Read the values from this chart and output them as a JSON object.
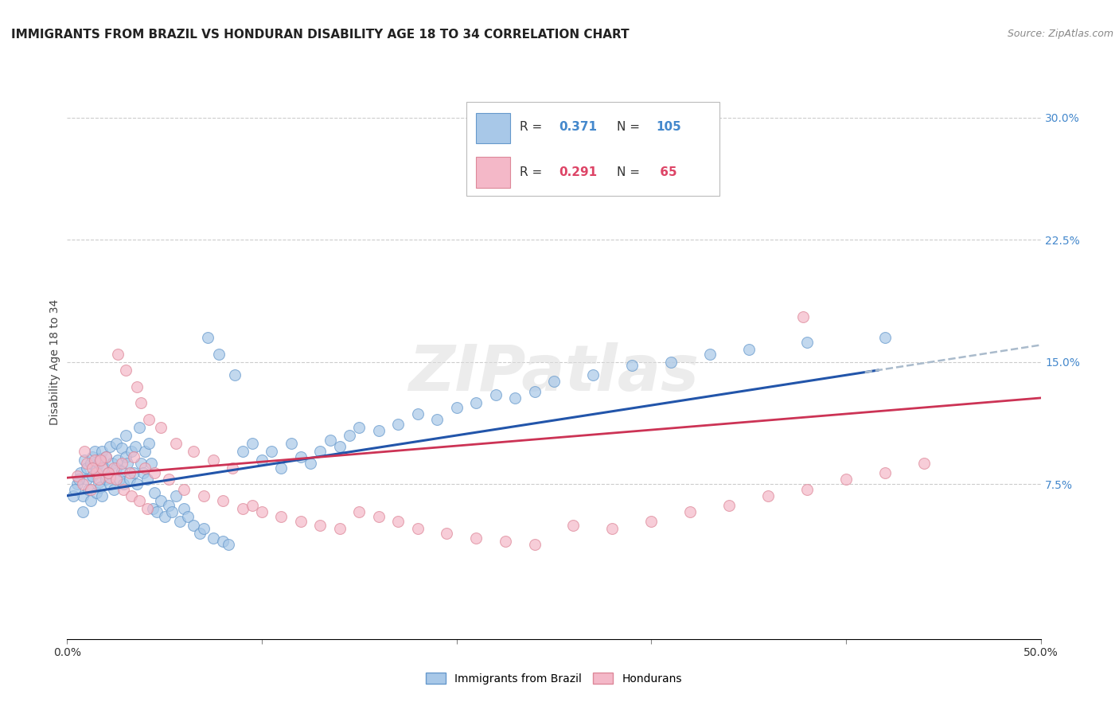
{
  "title": "IMMIGRANTS FROM BRAZIL VS HONDURAN DISABILITY AGE 18 TO 34 CORRELATION CHART",
  "source": "Source: ZipAtlas.com",
  "ylabel": "Disability Age 18 to 34",
  "xlim": [
    0.0,
    0.5
  ],
  "ylim": [
    -0.02,
    0.32
  ],
  "xticks": [
    0.0,
    0.1,
    0.2,
    0.3,
    0.4,
    0.5
  ],
  "xticklabels": [
    "0.0%",
    "",
    "",
    "",
    "",
    "50.0%"
  ],
  "yticks_right": [
    0.075,
    0.15,
    0.225,
    0.3
  ],
  "yticklabels_right": [
    "7.5%",
    "15.0%",
    "22.5%",
    "30.0%"
  ],
  "grid_color": "#cccccc",
  "background_color": "#ffffff",
  "brazil_color": "#a8c8e8",
  "brazil_edge": "#6699cc",
  "honduras_color": "#f4b8c8",
  "honduras_edge": "#dd8899",
  "brazil_line_color": "#2255aa",
  "honduras_line_color": "#cc3355",
  "brazil_dash_color": "#aabbcc",
  "brazil_R": 0.371,
  "brazil_N": 105,
  "honduras_R": 0.291,
  "honduras_N": 65,
  "brazil_legend_label": "Immigrants from Brazil",
  "honduras_legend_label": "Hondurans",
  "watermark_text": "ZIPatlas",
  "title_fontsize": 11,
  "axis_fontsize": 10,
  "legend_fontsize": 11,
  "brazil_scatter_x": [
    0.005,
    0.007,
    0.008,
    0.009,
    0.01,
    0.01,
    0.011,
    0.012,
    0.012,
    0.013,
    0.013,
    0.014,
    0.015,
    0.015,
    0.016,
    0.016,
    0.017,
    0.017,
    0.018,
    0.018,
    0.019,
    0.02,
    0.02,
    0.021,
    0.022,
    0.022,
    0.023,
    0.024,
    0.025,
    0.025,
    0.026,
    0.027,
    0.028,
    0.028,
    0.029,
    0.03,
    0.03,
    0.031,
    0.032,
    0.033,
    0.034,
    0.035,
    0.036,
    0.037,
    0.038,
    0.039,
    0.04,
    0.041,
    0.042,
    0.043,
    0.044,
    0.045,
    0.046,
    0.048,
    0.05,
    0.052,
    0.054,
    0.056,
    0.058,
    0.06,
    0.062,
    0.065,
    0.068,
    0.07,
    0.072,
    0.075,
    0.078,
    0.08,
    0.083,
    0.086,
    0.09,
    0.095,
    0.1,
    0.105,
    0.11,
    0.115,
    0.12,
    0.125,
    0.13,
    0.135,
    0.14,
    0.145,
    0.15,
    0.16,
    0.17,
    0.18,
    0.19,
    0.2,
    0.21,
    0.22,
    0.23,
    0.24,
    0.25,
    0.27,
    0.29,
    0.31,
    0.33,
    0.35,
    0.38,
    0.42,
    0.003,
    0.004,
    0.006,
    0.008,
    0.222
  ],
  "brazil_scatter_y": [
    0.075,
    0.082,
    0.068,
    0.09,
    0.085,
    0.078,
    0.072,
    0.065,
    0.088,
    0.092,
    0.08,
    0.095,
    0.07,
    0.084,
    0.076,
    0.088,
    0.073,
    0.091,
    0.068,
    0.095,
    0.085,
    0.078,
    0.092,
    0.082,
    0.075,
    0.098,
    0.088,
    0.072,
    0.1,
    0.085,
    0.09,
    0.078,
    0.083,
    0.097,
    0.075,
    0.092,
    0.105,
    0.088,
    0.078,
    0.095,
    0.082,
    0.098,
    0.075,
    0.11,
    0.088,
    0.082,
    0.095,
    0.078,
    0.1,
    0.088,
    0.06,
    0.07,
    0.058,
    0.065,
    0.055,
    0.062,
    0.058,
    0.068,
    0.052,
    0.06,
    0.055,
    0.05,
    0.045,
    0.048,
    0.165,
    0.042,
    0.155,
    0.04,
    0.038,
    0.142,
    0.095,
    0.1,
    0.09,
    0.095,
    0.085,
    0.1,
    0.092,
    0.088,
    0.095,
    0.102,
    0.098,
    0.105,
    0.11,
    0.108,
    0.112,
    0.118,
    0.115,
    0.122,
    0.125,
    0.13,
    0.128,
    0.132,
    0.138,
    0.142,
    0.148,
    0.15,
    0.155,
    0.158,
    0.162,
    0.165,
    0.068,
    0.072,
    0.078,
    0.058,
    0.285
  ],
  "honduras_scatter_x": [
    0.005,
    0.008,
    0.01,
    0.012,
    0.014,
    0.015,
    0.016,
    0.018,
    0.02,
    0.022,
    0.024,
    0.026,
    0.028,
    0.03,
    0.032,
    0.034,
    0.036,
    0.038,
    0.04,
    0.042,
    0.045,
    0.048,
    0.052,
    0.056,
    0.06,
    0.065,
    0.07,
    0.075,
    0.08,
    0.085,
    0.09,
    0.095,
    0.1,
    0.11,
    0.12,
    0.13,
    0.14,
    0.15,
    0.16,
    0.17,
    0.18,
    0.195,
    0.21,
    0.225,
    0.24,
    0.26,
    0.28,
    0.3,
    0.32,
    0.34,
    0.36,
    0.38,
    0.4,
    0.42,
    0.44,
    0.009,
    0.013,
    0.017,
    0.021,
    0.025,
    0.029,
    0.033,
    0.037,
    0.041,
    0.378
  ],
  "honduras_scatter_y": [
    0.08,
    0.075,
    0.088,
    0.072,
    0.09,
    0.082,
    0.078,
    0.085,
    0.092,
    0.079,
    0.085,
    0.155,
    0.088,
    0.145,
    0.082,
    0.092,
    0.135,
    0.125,
    0.085,
    0.115,
    0.082,
    0.11,
    0.078,
    0.1,
    0.072,
    0.095,
    0.068,
    0.09,
    0.065,
    0.085,
    0.06,
    0.062,
    0.058,
    0.055,
    0.052,
    0.05,
    0.048,
    0.058,
    0.055,
    0.052,
    0.048,
    0.045,
    0.042,
    0.04,
    0.038,
    0.05,
    0.048,
    0.052,
    0.058,
    0.062,
    0.068,
    0.072,
    0.078,
    0.082,
    0.088,
    0.095,
    0.085,
    0.09,
    0.082,
    0.078,
    0.072,
    0.068,
    0.065,
    0.06,
    0.178
  ]
}
